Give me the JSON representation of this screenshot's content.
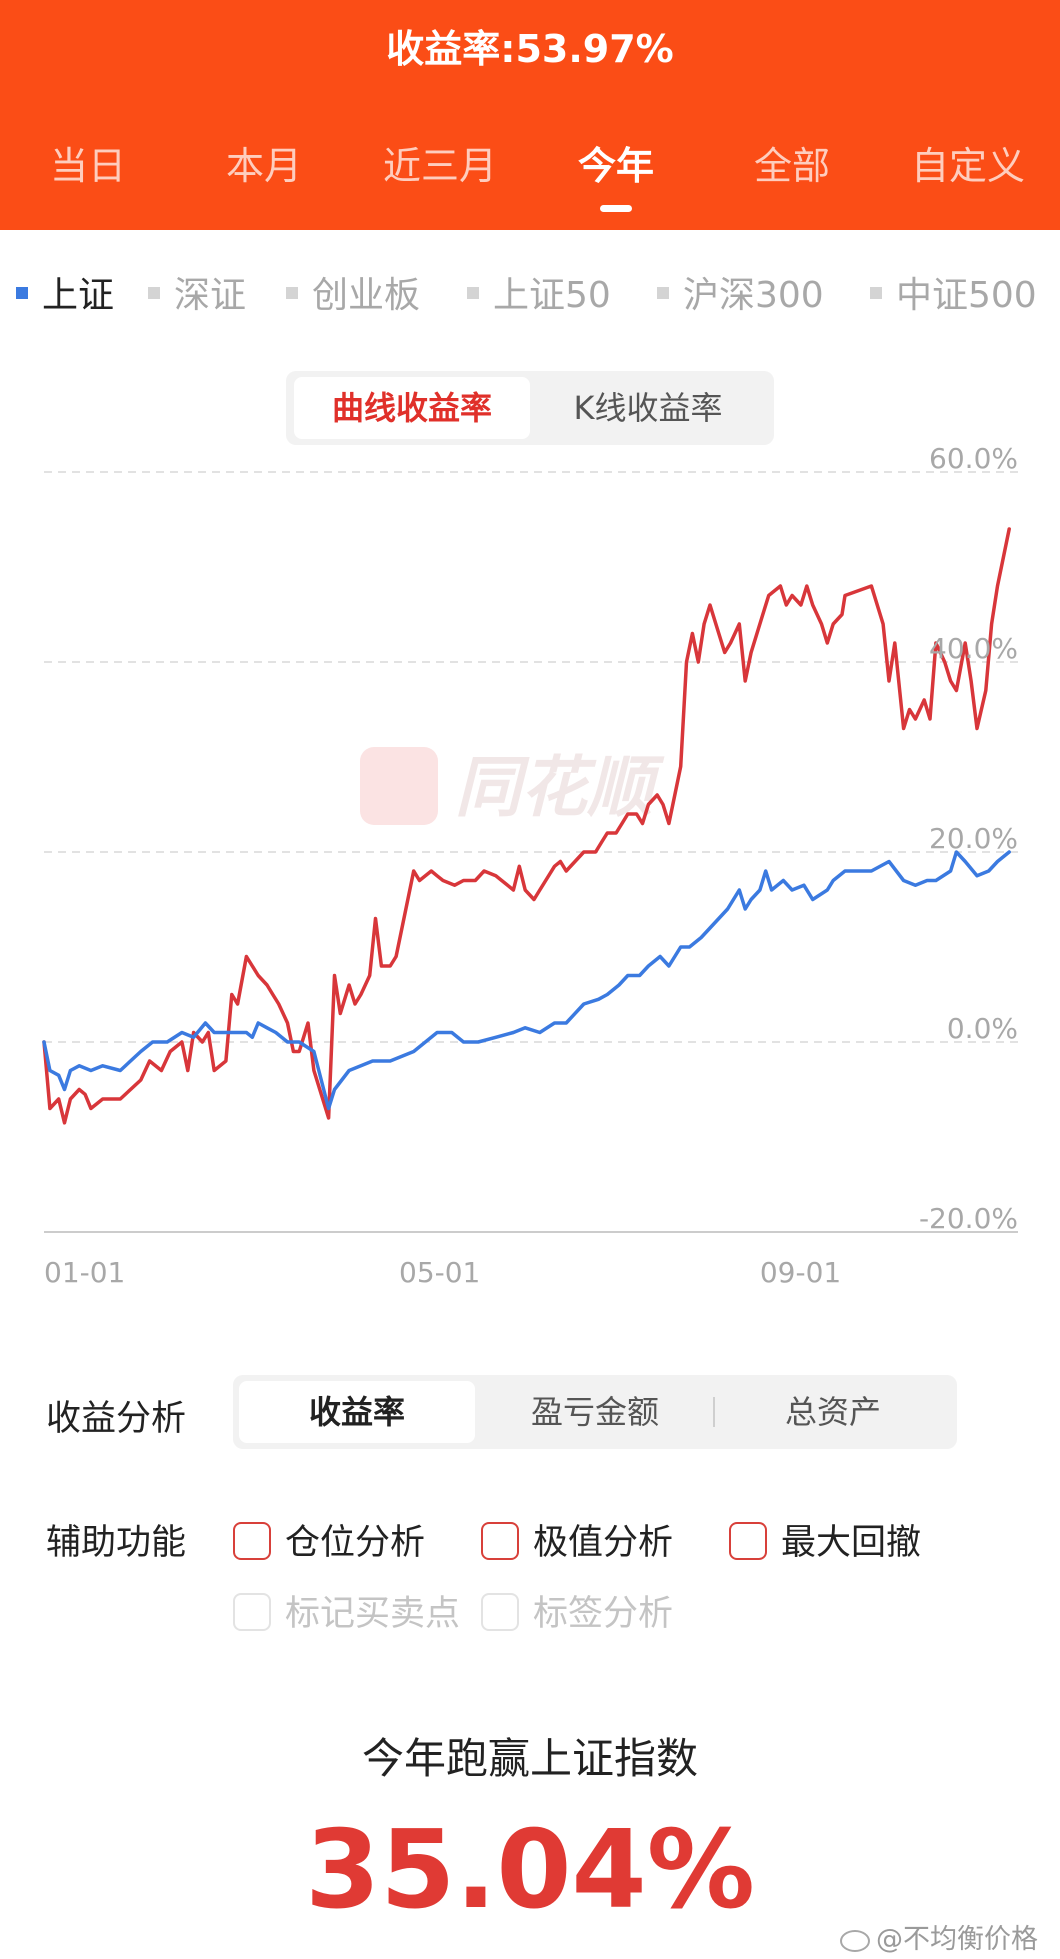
{
  "header": {
    "title": "收益率:53.97%"
  },
  "period_tabs": [
    {
      "label": "当日",
      "active": false
    },
    {
      "label": "本月",
      "active": false
    },
    {
      "label": "近三月",
      "active": false
    },
    {
      "label": "今年",
      "active": true
    },
    {
      "label": "全部",
      "active": false
    },
    {
      "label": "自定义",
      "active": false
    }
  ],
  "index_tabs": [
    {
      "label": "上证",
      "active": true
    },
    {
      "label": "深证",
      "active": false
    },
    {
      "label": "创业板",
      "active": false
    },
    {
      "label": "上证50",
      "active": false
    },
    {
      "label": "沪深300",
      "active": false
    },
    {
      "label": "中证500",
      "active": false
    }
  ],
  "chart_mode": {
    "options": [
      "曲线收益率",
      "K线收益率"
    ],
    "selected": "曲线收益率"
  },
  "chart_watermark": "同花顺",
  "colors": {
    "header": "#fb4d16",
    "my_return": "#d8363a",
    "index": "#3b7ae0",
    "accent_red": "#e03a34"
  },
  "chart_data": {
    "type": "line",
    "title": "",
    "xlabel": "",
    "ylabel": "",
    "x_ticks": [
      "01-01",
      "05-01",
      "09-01"
    ],
    "y_ticks": [
      "60.0%",
      "40.0%",
      "20.0%",
      "0.0%",
      "-20.0%"
    ],
    "ylim": [
      -20,
      60
    ],
    "x_range": [
      "01-01",
      "10-31"
    ],
    "grid": true,
    "legend": "none",
    "series": [
      {
        "color": "#d8363a",
        "points": [
          [
            "01-01",
            0
          ],
          [
            "01-03",
            -7
          ],
          [
            "01-06",
            -6
          ],
          [
            "01-08",
            -8.5
          ],
          [
            "01-10",
            -6
          ],
          [
            "01-13",
            -5
          ],
          [
            "01-15",
            -5.5
          ],
          [
            "01-17",
            -7
          ],
          [
            "01-21",
            -6
          ],
          [
            "01-27",
            -6
          ],
          [
            "02-03",
            -4
          ],
          [
            "02-06",
            -2
          ],
          [
            "02-10",
            -3
          ],
          [
            "02-13",
            -1
          ],
          [
            "02-17",
            0
          ],
          [
            "02-19",
            -3
          ],
          [
            "02-21",
            1
          ],
          [
            "02-24",
            0
          ],
          [
            "02-26",
            1
          ],
          [
            "02-28",
            -3
          ],
          [
            "03-03",
            -2
          ],
          [
            "03-05",
            5
          ],
          [
            "03-07",
            4
          ],
          [
            "03-10",
            9
          ],
          [
            "03-12",
            8
          ],
          [
            "03-14",
            7
          ],
          [
            "03-17",
            6
          ],
          [
            "03-19",
            5
          ],
          [
            "03-21",
            4
          ],
          [
            "03-24",
            2
          ],
          [
            "03-26",
            -1
          ],
          [
            "03-28",
            -1
          ],
          [
            "03-31",
            2
          ],
          [
            "04-02",
            -3
          ],
          [
            "04-07",
            -8
          ],
          [
            "04-09",
            7
          ],
          [
            "04-11",
            3
          ],
          [
            "04-14",
            6
          ],
          [
            "04-16",
            4
          ],
          [
            "04-18",
            5
          ],
          [
            "04-21",
            7
          ],
          [
            "04-23",
            13
          ],
          [
            "04-25",
            8
          ],
          [
            "04-28",
            8
          ],
          [
            "04-30",
            9
          ],
          [
            "05-06",
            18
          ],
          [
            "05-08",
            17
          ],
          [
            "05-12",
            18
          ],
          [
            "05-14",
            17.5
          ],
          [
            "05-16",
            17
          ],
          [
            "05-20",
            16.5
          ],
          [
            "05-23",
            17
          ],
          [
            "05-27",
            17
          ],
          [
            "05-30",
            18
          ],
          [
            "06-03",
            17.5
          ],
          [
            "06-05",
            17
          ],
          [
            "06-09",
            16
          ],
          [
            "06-11",
            18.5
          ],
          [
            "06-13",
            16
          ],
          [
            "06-16",
            15
          ],
          [
            "06-18",
            16
          ],
          [
            "06-20",
            17
          ],
          [
            "06-23",
            18.5
          ],
          [
            "06-25",
            19
          ],
          [
            "06-27",
            18
          ],
          [
            "06-30",
            19
          ],
          [
            "07-03",
            20
          ],
          [
            "07-07",
            20
          ],
          [
            "07-09",
            21
          ],
          [
            "07-11",
            22
          ],
          [
            "07-14",
            22
          ],
          [
            "07-16",
            23
          ],
          [
            "07-18",
            24
          ],
          [
            "07-21",
            24
          ],
          [
            "07-23",
            23
          ],
          [
            "07-25",
            25
          ],
          [
            "07-28",
            26
          ],
          [
            "07-30",
            25
          ],
          [
            "08-01",
            23
          ],
          [
            "08-05",
            29
          ],
          [
            "08-07",
            40
          ],
          [
            "08-09",
            43
          ],
          [
            "08-11",
            40
          ],
          [
            "08-13",
            44
          ],
          [
            "08-15",
            46
          ],
          [
            "08-18",
            43
          ],
          [
            "08-20",
            41
          ],
          [
            "08-22",
            42
          ],
          [
            "08-25",
            44
          ],
          [
            "08-27",
            38
          ],
          [
            "08-29",
            41
          ],
          [
            "09-02",
            45
          ],
          [
            "09-04",
            47
          ],
          [
            "09-08",
            48
          ],
          [
            "09-10",
            46
          ],
          [
            "09-12",
            47
          ],
          [
            "09-15",
            46
          ],
          [
            "09-17",
            48
          ],
          [
            "09-19",
            46
          ],
          [
            "09-22",
            44
          ],
          [
            "09-24",
            42
          ],
          [
            "09-26",
            44
          ],
          [
            "09-29",
            45
          ],
          [
            "09-30",
            47
          ],
          [
            "10-09",
            48
          ],
          [
            "10-13",
            44
          ],
          [
            "10-15",
            38
          ],
          [
            "10-17",
            42
          ],
          [
            "10-20",
            33
          ],
          [
            "10-22",
            35
          ],
          [
            "10-24",
            34
          ],
          [
            "10-27",
            36
          ],
          [
            "10-29",
            34
          ],
          [
            "10-31",
            42
          ],
          [
            "11-03",
            40
          ],
          [
            "11-05",
            38
          ],
          [
            "11-07",
            37
          ],
          [
            "11-10",
            42
          ],
          [
            "11-12",
            38
          ],
          [
            "11-14",
            33
          ],
          [
            "11-17",
            37
          ],
          [
            "11-19",
            44
          ],
          [
            "11-21",
            48
          ],
          [
            "11-25",
            54
          ]
        ]
      },
      {
        "color": "#3b7ae0",
        "points": [
          [
            "01-01",
            0
          ],
          [
            "01-03",
            -3
          ],
          [
            "01-06",
            -3.5
          ],
          [
            "01-08",
            -5
          ],
          [
            "01-10",
            -3
          ],
          [
            "01-13",
            -2.5
          ],
          [
            "01-17",
            -3
          ],
          [
            "01-21",
            -2.5
          ],
          [
            "01-27",
            -3
          ],
          [
            "02-03",
            -1
          ],
          [
            "02-07",
            0
          ],
          [
            "02-12",
            0
          ],
          [
            "02-17",
            1
          ],
          [
            "02-21",
            0.5
          ],
          [
            "02-25",
            2
          ],
          [
            "02-28",
            1
          ],
          [
            "03-05",
            1
          ],
          [
            "03-10",
            1
          ],
          [
            "03-12",
            0.5
          ],
          [
            "03-14",
            2
          ],
          [
            "03-17",
            1.5
          ],
          [
            "03-20",
            1
          ],
          [
            "03-24",
            0
          ],
          [
            "03-28",
            0
          ],
          [
            "04-02",
            -1
          ],
          [
            "04-07",
            -7
          ],
          [
            "04-09",
            -5
          ],
          [
            "04-14",
            -3
          ],
          [
            "04-18",
            -2.5
          ],
          [
            "04-22",
            -2
          ],
          [
            "04-28",
            -2
          ],
          [
            "05-06",
            -1
          ],
          [
            "05-10",
            0
          ],
          [
            "05-14",
            1
          ],
          [
            "05-19",
            1
          ],
          [
            "05-23",
            0
          ],
          [
            "05-28",
            0
          ],
          [
            "06-03",
            0.5
          ],
          [
            "06-09",
            1
          ],
          [
            "06-13",
            1.5
          ],
          [
            "06-18",
            1
          ],
          [
            "06-23",
            2
          ],
          [
            "06-27",
            2
          ],
          [
            "07-03",
            4
          ],
          [
            "07-08",
            4.5
          ],
          [
            "07-11",
            5
          ],
          [
            "07-15",
            6
          ],
          [
            "07-18",
            7
          ],
          [
            "07-22",
            7
          ],
          [
            "07-25",
            8
          ],
          [
            "07-29",
            9
          ],
          [
            "08-01",
            8
          ],
          [
            "08-05",
            10
          ],
          [
            "08-08",
            10
          ],
          [
            "08-12",
            11
          ],
          [
            "08-15",
            12
          ],
          [
            "08-18",
            13
          ],
          [
            "08-21",
            14
          ],
          [
            "08-25",
            16
          ],
          [
            "08-27",
            14
          ],
          [
            "08-29",
            15
          ],
          [
            "09-01",
            16
          ],
          [
            "09-03",
            18
          ],
          [
            "09-05",
            16
          ],
          [
            "09-09",
            17
          ],
          [
            "09-12",
            16
          ],
          [
            "09-16",
            16.5
          ],
          [
            "09-19",
            15
          ],
          [
            "09-24",
            16
          ],
          [
            "09-26",
            17
          ],
          [
            "09-30",
            18
          ],
          [
            "10-09",
            18
          ],
          [
            "10-15",
            19
          ],
          [
            "10-20",
            17
          ],
          [
            "10-24",
            16.5
          ],
          [
            "10-28",
            17
          ],
          [
            "10-31",
            17
          ],
          [
            "11-05",
            18
          ],
          [
            "11-07",
            20
          ],
          [
            "11-10",
            19
          ],
          [
            "11-14",
            17.5
          ],
          [
            "11-18",
            18
          ],
          [
            "11-21",
            19
          ],
          [
            "11-25",
            20
          ]
        ]
      }
    ]
  },
  "analysis": {
    "label": "收益分析",
    "options": [
      "收益率",
      "盈亏金额",
      "总资产"
    ],
    "selected": "收益率"
  },
  "aux": {
    "label": "辅助功能",
    "enabled": [
      "仓位分析",
      "极值分析",
      "最大回撤"
    ],
    "disabled": [
      "标记买卖点",
      "标签分析"
    ]
  },
  "beat": {
    "title": "今年跑赢上证指数",
    "value": "35.04%"
  },
  "watermark": "@不均衡价格"
}
